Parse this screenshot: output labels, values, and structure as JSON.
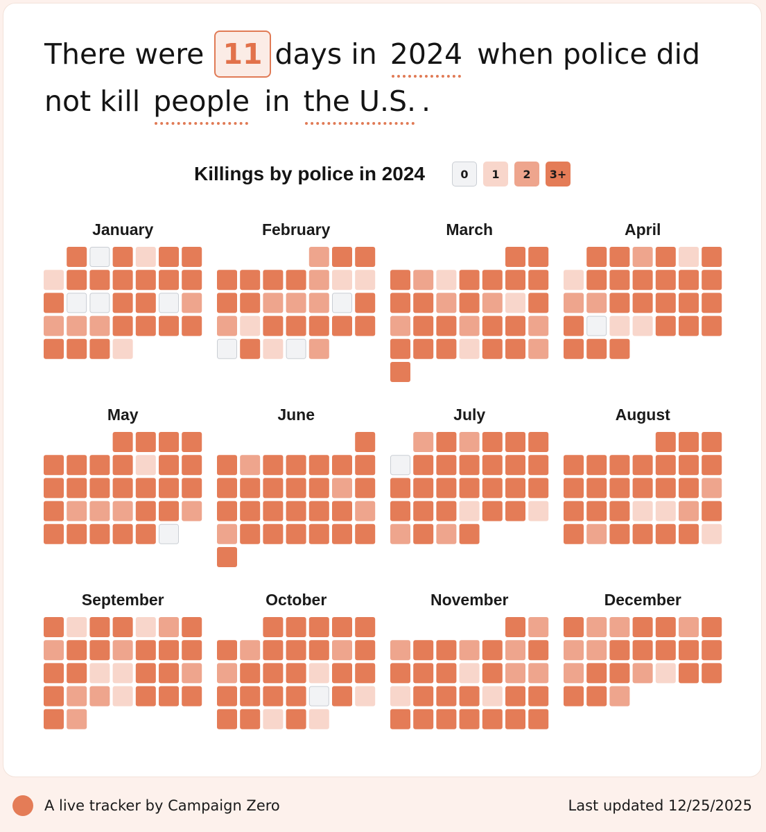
{
  "headline": {
    "prefix": "There were",
    "count": "11",
    "mid": "days in",
    "year": "2024",
    "suffix": "when police did",
    "line2_prefix": "not kill",
    "victims": "people",
    "connector": "in",
    "place": "the U.S.",
    "end": "."
  },
  "legend": {
    "items": [
      {
        "label": "0",
        "color": "#f2f3f5",
        "border": "#c9cdd3"
      },
      {
        "label": "1",
        "color": "#f8d6cb",
        "border": "#f8d6cb"
      },
      {
        "label": "2",
        "color": "#eea58d",
        "border": "#eea58d"
      },
      {
        "label": "3+",
        "color": "#e47c57",
        "border": "#e47c57"
      }
    ]
  },
  "footer": {
    "left": "A live tracker by Campaign Zero",
    "right": "Last updated 12/25/2025"
  },
  "chart_data": {
    "type": "heatmap",
    "title": "Killings by police in 2024",
    "unit": "daily killings bucket (0, 1, 2, 3 = 3+)",
    "categories": [
      "0",
      "1",
      "2",
      "3+"
    ],
    "months": [
      {
        "name": "January",
        "start_weekday": 1,
        "values": [
          3,
          0,
          3,
          1,
          3,
          3,
          1,
          3,
          3,
          3,
          3,
          3,
          3,
          3,
          0,
          0,
          3,
          3,
          0,
          2,
          2,
          2,
          2,
          3,
          3,
          3,
          3,
          3,
          3,
          3,
          1
        ]
      },
      {
        "name": "February",
        "start_weekday": 4,
        "values": [
          2,
          3,
          3,
          3,
          3,
          3,
          3,
          2,
          1,
          1,
          3,
          3,
          2,
          2,
          2,
          0,
          3,
          2,
          1,
          3,
          3,
          3,
          3,
          3,
          0,
          3,
          1,
          0,
          2
        ]
      },
      {
        "name": "March",
        "start_weekday": 5,
        "values": [
          3,
          3,
          3,
          2,
          1,
          3,
          3,
          3,
          3,
          3,
          3,
          2,
          3,
          2,
          1,
          3,
          2,
          3,
          3,
          2,
          3,
          3,
          2,
          3,
          3,
          3,
          1,
          3,
          3,
          2,
          3
        ]
      },
      {
        "name": "April",
        "start_weekday": 1,
        "values": [
          3,
          3,
          2,
          3,
          1,
          3,
          1,
          3,
          3,
          3,
          3,
          3,
          3,
          2,
          2,
          3,
          3,
          3,
          3,
          3,
          3,
          0,
          1,
          1,
          3,
          3,
          3,
          3,
          3,
          3
        ]
      },
      {
        "name": "May",
        "start_weekday": 3,
        "values": [
          3,
          3,
          3,
          3,
          3,
          3,
          3,
          3,
          1,
          3,
          3,
          3,
          3,
          3,
          3,
          3,
          3,
          3,
          3,
          2,
          2,
          2,
          3,
          3,
          2,
          3,
          3,
          3,
          3,
          3,
          0
        ]
      },
      {
        "name": "June",
        "start_weekday": 6,
        "values": [
          3,
          3,
          2,
          3,
          3,
          3,
          3,
          3,
          3,
          3,
          3,
          3,
          3,
          2,
          3,
          3,
          3,
          3,
          3,
          3,
          3,
          2,
          2,
          3,
          3,
          3,
          3,
          3,
          3,
          3
        ]
      },
      {
        "name": "July",
        "start_weekday": 1,
        "values": [
          2,
          3,
          2,
          3,
          3,
          3,
          0,
          3,
          3,
          3,
          3,
          3,
          3,
          3,
          3,
          3,
          3,
          3,
          3,
          3,
          3,
          3,
          3,
          1,
          3,
          3,
          1,
          2,
          3,
          2,
          3
        ]
      },
      {
        "name": "August",
        "start_weekday": 4,
        "values": [
          3,
          3,
          3,
          3,
          3,
          3,
          3,
          3,
          3,
          3,
          3,
          3,
          3,
          3,
          3,
          3,
          2,
          3,
          3,
          3,
          1,
          1,
          2,
          3,
          3,
          2,
          3,
          3,
          3,
          3,
          1
        ]
      },
      {
        "name": "September",
        "start_weekday": 0,
        "values": [
          3,
          1,
          3,
          3,
          1,
          2,
          3,
          2,
          3,
          3,
          2,
          3,
          3,
          3,
          3,
          3,
          1,
          1,
          3,
          3,
          2,
          3,
          2,
          2,
          1,
          3,
          3,
          3,
          3,
          2
        ]
      },
      {
        "name": "October",
        "start_weekday": 2,
        "values": [
          3,
          3,
          3,
          3,
          3,
          3,
          2,
          3,
          3,
          3,
          2,
          3,
          2,
          3,
          3,
          3,
          1,
          3,
          3,
          3,
          3,
          3,
          3,
          0,
          3,
          1,
          3,
          3,
          1,
          3,
          1
        ]
      },
      {
        "name": "November",
        "start_weekday": 5,
        "values": [
          3,
          2,
          2,
          3,
          3,
          2,
          3,
          2,
          3,
          3,
          3,
          3,
          1,
          3,
          2,
          2,
          1,
          3,
          3,
          3,
          1,
          3,
          3,
          3,
          3,
          3,
          3,
          3,
          3,
          3
        ]
      },
      {
        "name": "December",
        "start_weekday": 0,
        "values": [
          3,
          2,
          2,
          3,
          3,
          2,
          3,
          2,
          2,
          3,
          3,
          3,
          3,
          3,
          2,
          3,
          3,
          2,
          1,
          3,
          3,
          3,
          3,
          2
        ]
      }
    ]
  }
}
